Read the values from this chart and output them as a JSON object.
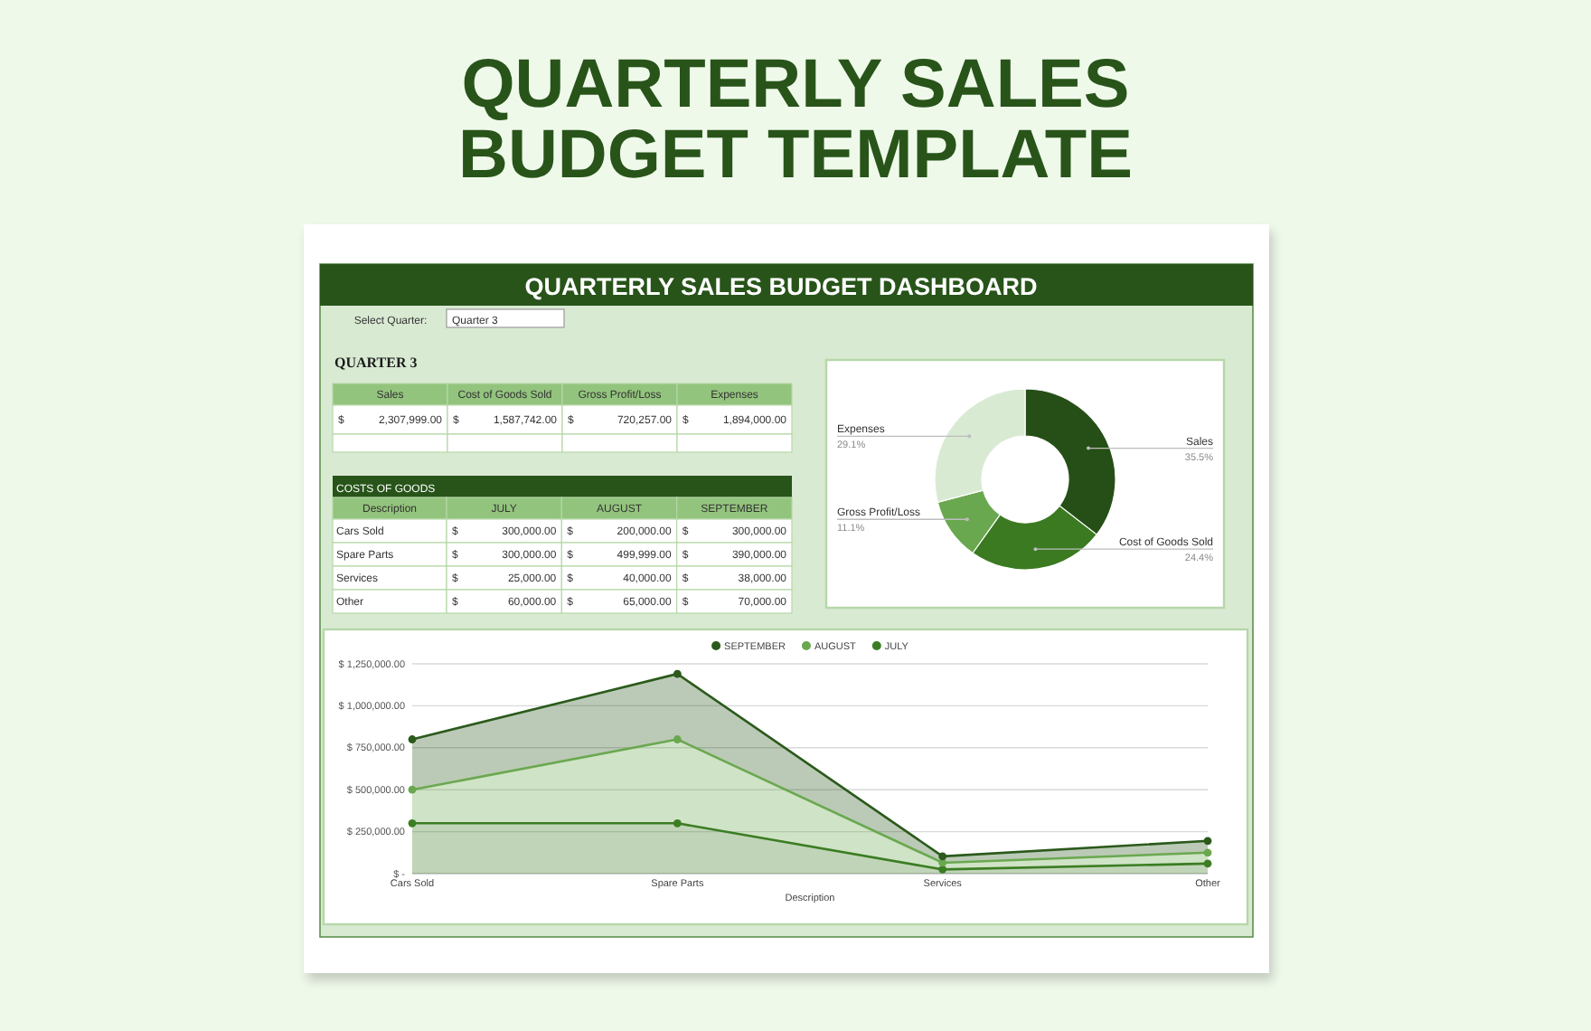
{
  "chart_data": [
    {
      "type": "other",
      "title": "QUARTERLY SALES BUDGET TEMPLATE",
      "subtitle": "QUARTERLY SALES BUDGET DASHBOARD",
      "annotations": [
        "Select Quarter:",
        "Quarter 3"
      ]
    },
    {
      "type": "other",
      "title": "QUARTER 3",
      "annotations": [
        "Sales",
        "Cost of Goods Sold",
        "Gross Profit/Loss",
        "Expenses",
        "$ 2,307,999.00",
        "$ 1,587,742.00",
        "$ 720,257.00",
        "$ 1,894,000.00"
      ]
    },
    {
      "type": "donut",
      "categories": [
        "Sales",
        "Cost of Goods Sold",
        "Gross Profit/Loss",
        "Expenses"
      ],
      "values": [
        35.5,
        24.4,
        11.1,
        29.1
      ],
      "value_labels": [
        "35.5%",
        "24.4%",
        "11.1%",
        "29.1%"
      ],
      "colors": [
        "#264f17",
        "#3b7a21",
        "#6aa84f",
        "#d9ead3"
      ]
    },
    {
      "type": "other",
      "title": "COSTS OF GOODS",
      "annotations": [
        "Description",
        "JULY",
        "AUGUST",
        "SEPTEMBER",
        "Cars Sold",
        "$ 300,000.00",
        "$ 200,000.00",
        "$ 300,000.00",
        "Spare Parts",
        "$ 300,000.00",
        "$ 499,999.00",
        "$ 390,000.00",
        "Services",
        "$ 25,000.00",
        "$ 40,000.00",
        "$ 38,000.00",
        "Other",
        "$ 60,000.00",
        "$ 65,000.00",
        "$ 70,000.00"
      ]
    },
    {
      "type": "area",
      "stacked": true,
      "categories": [
        "Cars Sold",
        "Spare Parts",
        "Services",
        "Other"
      ],
      "xlabel": "Description",
      "series": [
        {
          "name": "JULY",
          "color": "#3b7d23",
          "values": [
            300000,
            300000,
            25000,
            60000
          ]
        },
        {
          "name": "AUGUST",
          "color": "#6aa84f",
          "values": [
            200000,
            499999,
            40000,
            65000
          ]
        },
        {
          "name": "SEPTEMBER",
          "color": "#2b5a1c",
          "values": [
            300000,
            390000,
            38000,
            70000
          ]
        }
      ],
      "ylim": [
        0,
        1250000
      ],
      "yticks": [
        {
          "value": 0,
          "label": "$ -"
        },
        {
          "value": 250000,
          "label": "$ 250,000.00"
        },
        {
          "value": 500000,
          "label": "$ 500,000.00"
        },
        {
          "value": 750000,
          "label": "$ 750,000.00"
        },
        {
          "value": 1000000,
          "label": "$ 1,000,000.00"
        },
        {
          "value": 1250000,
          "label": "$ 1,250,000.00"
        }
      ],
      "grid": "y",
      "legend": "top",
      "marker": "circle"
    }
  ]
}
